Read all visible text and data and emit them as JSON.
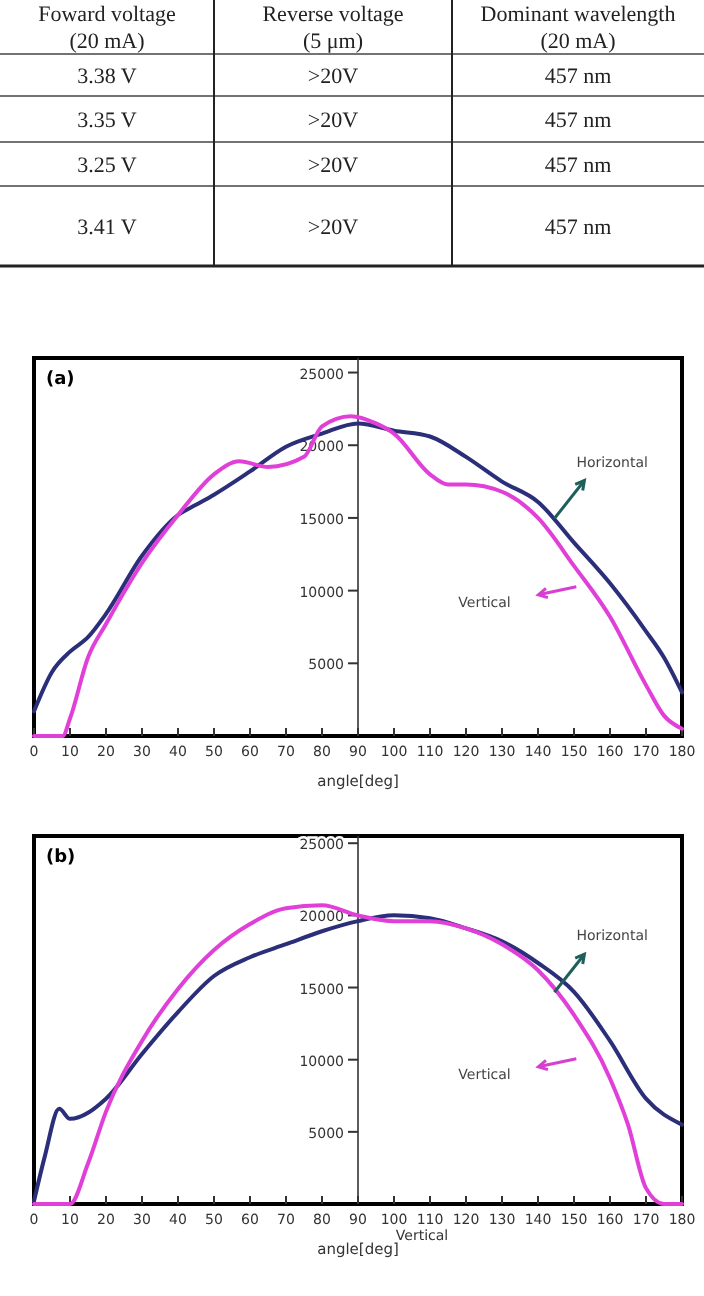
{
  "chart_data": [
    {
      "type": "other",
      "annotations": [
        "Foward voltage",
        "Reverse voltage",
        "Dominant  wavelength",
        "(20 mA)",
        "(5 μm)",
        "(20 mA)",
        "3.38 V",
        ">20V",
        "457 nm",
        "3.35 V",
        ">20V",
        "457 nm",
        "3.25 V",
        ">20V",
        "457 nm",
        "3.41 V",
        ">20V",
        "457 nm"
      ]
    },
    {
      "type": "line",
      "xlabel": "angle[deg]",
      "x": [
        0,
        5,
        10,
        15,
        20,
        30,
        40,
        45,
        50,
        60,
        70,
        80,
        90,
        100,
        110,
        120,
        130,
        140,
        150,
        160,
        170,
        175,
        180
      ],
      "series": [
        {
          "color": "#2b2f7a",
          "values": [
            1700,
            4400,
            5800,
            6800,
            8400,
            12400,
            15200,
            15900,
            16600,
            18200,
            19900,
            20800,
            21500,
            21000,
            20600,
            19200,
            17500,
            16100,
            13300,
            10500,
            7200,
            5400,
            3000
          ]
        },
        {
          "color": "#e040d8",
          "x": [
            0,
            8,
            10,
            15,
            20,
            30,
            40,
            50,
            57,
            65,
            75,
            80,
            88,
            95,
            100,
            110,
            115,
            120,
            130,
            140,
            150,
            160,
            170,
            175,
            180
          ],
          "values": [
            0,
            0,
            1200,
            5400,
            7700,
            11900,
            15200,
            18000,
            18900,
            18500,
            19200,
            21300,
            22000,
            21500,
            20800,
            18000,
            17300,
            17300,
            16800,
            15000,
            11700,
            8200,
            3500,
            1400,
            500
          ]
        }
      ],
      "xlim": [
        0,
        180
      ],
      "xticks": [
        0,
        10,
        20,
        30,
        40,
        50,
        60,
        70,
        80,
        90,
        100,
        110,
        120,
        130,
        140,
        150,
        160,
        170,
        180
      ],
      "ylim": [
        0,
        26000
      ],
      "yticks": [
        5000,
        10000,
        15000,
        20000,
        25000
      ],
      "annotations": [
        "(a)",
        "Horizontal",
        "Vertical"
      ]
    },
    {
      "type": "line",
      "xlabel": "angle[deg]",
      "x": [
        0,
        3,
        7,
        10,
        20,
        30,
        40,
        50,
        60,
        70,
        80,
        90,
        100,
        110,
        120,
        130,
        140,
        150,
        160,
        170,
        180
      ],
      "series": [
        {
          "color": "#2b2f7a",
          "values": [
            200,
            3300,
            6600,
            5900,
            7300,
            10400,
            13300,
            15800,
            17100,
            18000,
            18900,
            19600,
            20000,
            19800,
            19100,
            18200,
            16700,
            14700,
            11300,
            7300,
            5500
          ]
        },
        {
          "color": "#e040d8",
          "x": [
            0,
            10,
            15,
            20,
            30,
            40,
            50,
            60,
            70,
            80,
            90,
            100,
            110,
            120,
            130,
            140,
            150,
            160,
            165,
            170,
            175,
            180
          ],
          "values": [
            0,
            0,
            2800,
            6400,
            11300,
            14900,
            17600,
            19400,
            20500,
            20700,
            20000,
            19600,
            19600,
            19100,
            18000,
            16200,
            13100,
            8700,
            5500,
            1100,
            0,
            0
          ]
        }
      ],
      "xlim": [
        0,
        180
      ],
      "xticks": [
        0,
        10,
        20,
        30,
        40,
        50,
        60,
        70,
        80,
        90,
        100,
        110,
        120,
        130,
        140,
        150,
        160,
        170,
        180
      ],
      "ylim": [
        0,
        25500
      ],
      "yticks": [
        5000,
        10000,
        15000,
        20000,
        25000
      ],
      "annotations": [
        "(b)",
        "Horizontal",
        "Vertical",
        "Vertical"
      ]
    }
  ]
}
